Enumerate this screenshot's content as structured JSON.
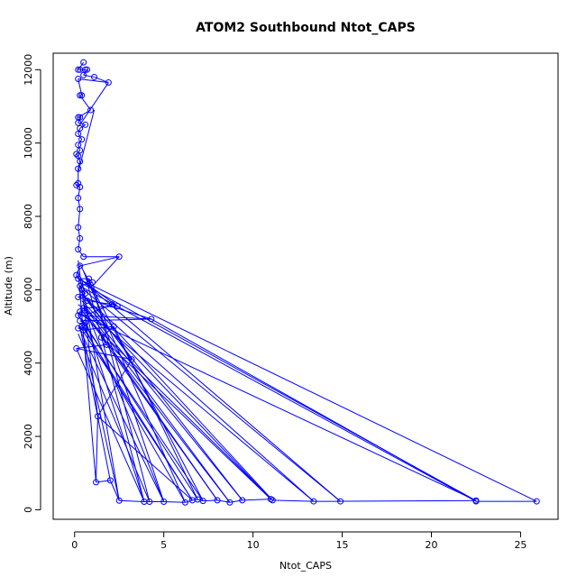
{
  "chart_data": {
    "type": "line",
    "title": "ATOM2 Southbound Ntot_CAPS",
    "xlabel": "Ntot_CAPS",
    "ylabel": "Altitude (m)",
    "xlim": [
      -1.2,
      27.1
    ],
    "ylim": [
      -260,
      12450
    ],
    "xticks": [
      0,
      5,
      10,
      15,
      20,
      25
    ],
    "yticks": [
      0,
      2000,
      4000,
      6000,
      8000,
      10000,
      12000
    ],
    "grid": false,
    "legend": "none",
    "series_color": "#0000ff",
    "markers": "open-circle",
    "series": [
      {
        "points": [
          [
            0.5,
            12200
          ],
          [
            0.2,
            12000
          ],
          [
            0.3,
            12000
          ],
          [
            0.6,
            12000
          ],
          [
            0.7,
            12000
          ],
          [
            0.5,
            11850
          ],
          [
            1.1,
            11800
          ],
          [
            1.9,
            11650
          ],
          [
            0.2,
            11750
          ],
          [
            0.4,
            11300
          ],
          [
            0.3,
            11300
          ],
          [
            0.9,
            10900
          ],
          [
            0.2,
            10700
          ],
          [
            0.3,
            10700
          ],
          [
            0.2,
            10550
          ],
          [
            0.6,
            10500
          ],
          [
            0.3,
            10400
          ],
          [
            0.2,
            10250
          ],
          [
            0.4,
            10100
          ],
          [
            0.2,
            9950
          ],
          [
            0.3,
            9800
          ],
          [
            0.1,
            9700
          ],
          [
            0.2,
            9650
          ],
          [
            0.3,
            9500
          ],
          [
            0.2,
            9300
          ],
          [
            0.2,
            8900
          ],
          [
            0.1,
            8850
          ],
          [
            0.3,
            8800
          ],
          [
            0.2,
            8500
          ],
          [
            0.3,
            8200
          ],
          [
            0.2,
            7700
          ],
          [
            0.3,
            7400
          ],
          [
            0.2,
            7100
          ],
          [
            0.5,
            6900
          ],
          [
            2.5,
            6900
          ],
          [
            0.3,
            6650
          ],
          [
            0.1,
            6400
          ],
          [
            0.2,
            6300
          ],
          [
            0.8,
            6300
          ],
          [
            1.0,
            6200
          ],
          [
            0.3,
            6100
          ],
          [
            0.4,
            6000
          ],
          [
            0.6,
            5900
          ],
          [
            0.2,
            5800
          ],
          [
            0.7,
            5700
          ],
          [
            2.1,
            5600
          ],
          [
            2.4,
            5550
          ],
          [
            0.5,
            5500
          ],
          [
            0.3,
            5400
          ],
          [
            0.2,
            5300
          ],
          [
            4.3,
            5200
          ],
          [
            0.3,
            5150
          ],
          [
            0.6,
            5100
          ],
          [
            0.4,
            5000
          ],
          [
            0.2,
            4950
          ],
          [
            0.5,
            4900
          ],
          [
            2.2,
            5000
          ],
          [
            1.5,
            4700
          ],
          [
            1.8,
            4500
          ],
          [
            0.1,
            4400
          ],
          [
            3.2,
            4100
          ],
          [
            1.3,
            2550
          ],
          [
            1.2,
            750
          ],
          [
            2.0,
            800
          ],
          [
            2.5,
            250
          ],
          [
            3.9,
            220
          ],
          [
            4.2,
            220
          ],
          [
            5.0,
            220
          ],
          [
            6.2,
            200
          ],
          [
            6.6,
            260
          ],
          [
            6.9,
            280
          ],
          [
            7.2,
            240
          ],
          [
            8.0,
            260
          ],
          [
            8.7,
            200
          ],
          [
            9.4,
            260
          ],
          [
            11.0,
            290
          ],
          [
            11.1,
            260
          ],
          [
            13.4,
            230
          ],
          [
            14.9,
            230
          ],
          [
            22.5,
            250
          ],
          [
            22.5,
            230
          ],
          [
            25.9,
            230
          ]
        ],
        "connections": [
          [
            1.9,
            11650,
            0.3,
            10500
          ],
          [
            1.1,
            10900,
            0.2,
            9200
          ],
          [
            2.5,
            6900,
            1.0,
            6100
          ],
          [
            0.2,
            6300,
            25.9,
            230
          ],
          [
            0.3,
            6200,
            22.5,
            250
          ],
          [
            0.3,
            6100,
            22.5,
            230
          ],
          [
            0.5,
            6000,
            14.9,
            230
          ],
          [
            0.3,
            5900,
            13.4,
            230
          ],
          [
            0.6,
            5800,
            11.1,
            260
          ],
          [
            0.4,
            5700,
            11.0,
            290
          ],
          [
            0.5,
            5600,
            9.4,
            260
          ],
          [
            0.3,
            5500,
            8.7,
            200
          ],
          [
            0.6,
            5400,
            8.0,
            260
          ],
          [
            0.2,
            5300,
            7.2,
            240
          ],
          [
            0.4,
            5200,
            6.9,
            280
          ],
          [
            0.3,
            5100,
            6.6,
            260
          ],
          [
            0.5,
            5000,
            6.2,
            200
          ],
          [
            0.3,
            4900,
            5.0,
            220
          ],
          [
            0.2,
            4800,
            4.2,
            220
          ],
          [
            0.6,
            6400,
            3.9,
            220
          ],
          [
            0.4,
            6300,
            2.5,
            250
          ],
          [
            0.2,
            6500,
            1.2,
            750
          ],
          [
            0.3,
            5000,
            2.0,
            800
          ],
          [
            4.3,
            5200,
            0.4,
            5800
          ],
          [
            2.1,
            5600,
            0.6,
            5300
          ],
          [
            2.4,
            5550,
            0.3,
            6300
          ],
          [
            1.3,
            2550,
            0.2,
            6800
          ],
          [
            3.2,
            4100,
            0.3,
            6000
          ],
          [
            1.5,
            4700,
            11.0,
            290
          ],
          [
            1.8,
            4500,
            8.0,
            260
          ],
          [
            2.2,
            5000,
            6.9,
            280
          ],
          [
            0.1,
            4400,
            3.9,
            220
          ],
          [
            0.3,
            6700,
            7.2,
            240
          ],
          [
            0.5,
            6500,
            6.2,
            200
          ],
          [
            0.8,
            6300,
            5.0,
            220
          ],
          [
            1.0,
            6200,
            4.2,
            220
          ],
          [
            0.2,
            5600,
            13.4,
            230
          ],
          [
            0.3,
            5400,
            11.1,
            260
          ],
          [
            0.7,
            5700,
            9.4,
            260
          ],
          [
            0.6,
            5500,
            8.7,
            200
          ],
          [
            1.3,
            2550,
            6.6,
            260
          ],
          [
            0.4,
            5300,
            22.5,
            250
          ],
          [
            0.3,
            6300,
            14.9,
            230
          ],
          [
            4.3,
            5200,
            22.5,
            230
          ],
          [
            2.5,
            250,
            0.5,
            4700
          ],
          [
            6.6,
            260,
            0.3,
            5000
          ],
          [
            3.9,
            220,
            0.6,
            5200
          ],
          [
            5.0,
            220,
            0.5,
            5600
          ]
        ]
      }
    ]
  }
}
